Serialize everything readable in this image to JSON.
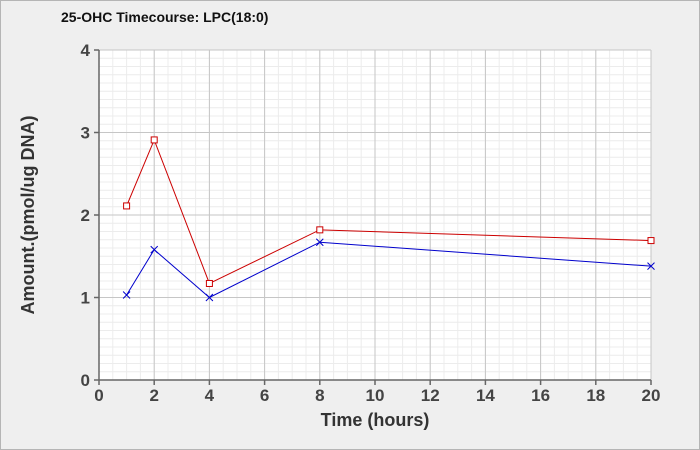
{
  "chart_data": {
    "type": "line",
    "title": "25-OHC Timecourse: LPC(18:0)",
    "xlabel": "Time (hours)",
    "ylabel": "Amount.(pmol/ug DNA)",
    "xlim": [
      0,
      20
    ],
    "ylim": [
      0,
      4
    ],
    "x_ticks": [
      0,
      2,
      4,
      6,
      8,
      10,
      12,
      14,
      16,
      18,
      20
    ],
    "y_ticks": [
      0,
      1,
      2,
      3,
      4
    ],
    "grid": true,
    "series": [
      {
        "color": "#cc0000",
        "marker": "square",
        "x": [
          1,
          2,
          4,
          8,
          20
        ],
        "y": [
          2.11,
          2.91,
          1.17,
          1.82,
          1.69
        ]
      },
      {
        "color": "#0000cc",
        "marker": "x",
        "x": [
          1,
          2,
          4,
          8,
          20
        ],
        "y": [
          1.03,
          1.58,
          1.0,
          1.67,
          1.38
        ]
      }
    ]
  }
}
